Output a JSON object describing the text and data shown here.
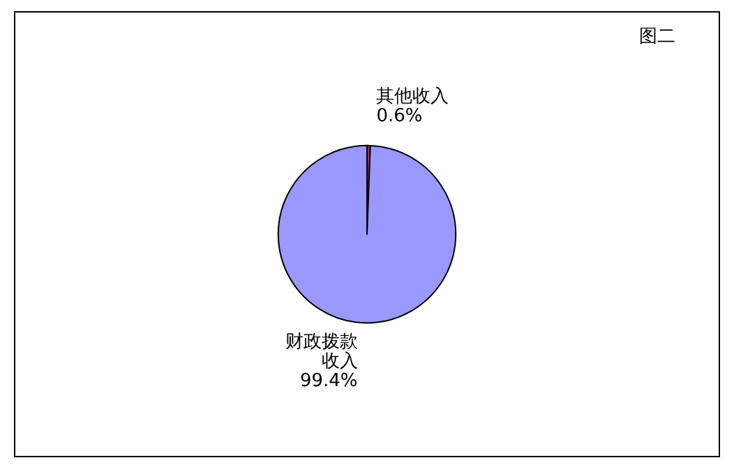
{
  "chart_data": {
    "type": "pie",
    "title": "图二",
    "categories": [
      "其他收入",
      "财政拨款收入"
    ],
    "values": [
      0.6,
      99.4
    ],
    "value_labels": [
      "0.6%",
      "99.4%"
    ],
    "colors": [
      "#993366",
      "#9999ff"
    ]
  }
}
